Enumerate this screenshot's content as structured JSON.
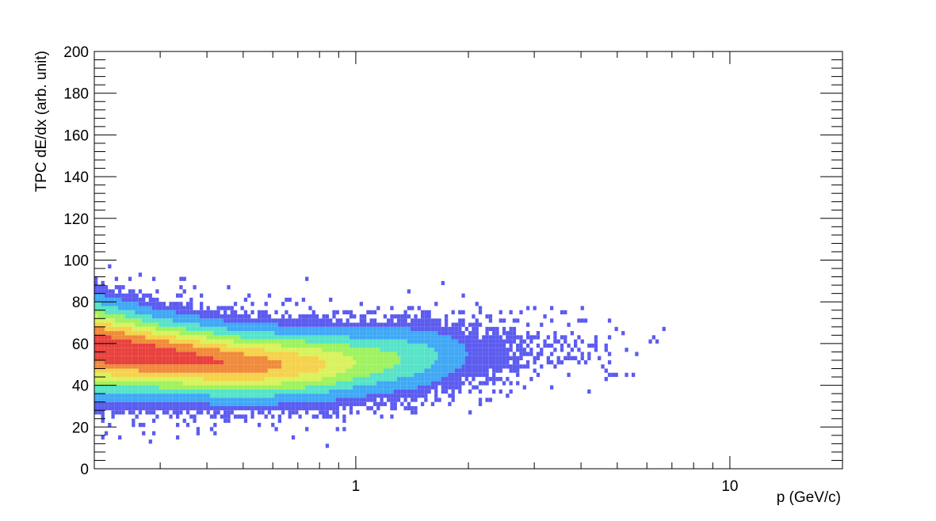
{
  "chart_data": {
    "type": "heatmap",
    "title": "",
    "xlabel": "p (GeV/c)",
    "ylabel": "TPC dE/dx (arb. unit)",
    "x_scale": "log",
    "xlim": [
      0.2,
      20
    ],
    "ylim": [
      0,
      200
    ],
    "grid": false,
    "legend": "none",
    "x_tick_labels": [
      {
        "value": 1,
        "label": "1"
      },
      {
        "value": 10,
        "label": "10"
      }
    ],
    "y_tick_labels": [
      {
        "value": 0,
        "label": "0"
      },
      {
        "value": 20,
        "label": "20"
      },
      {
        "value": 40,
        "label": "40"
      },
      {
        "value": 60,
        "label": "60"
      },
      {
        "value": 80,
        "label": "80"
      },
      {
        "value": 100,
        "label": "100"
      },
      {
        "value": 120,
        "label": "120"
      },
      {
        "value": 140,
        "label": "140"
      },
      {
        "value": 160,
        "label": "160"
      },
      {
        "value": 180,
        "label": "180"
      },
      {
        "value": 200,
        "label": "200"
      }
    ],
    "colormap": [
      "#ffffff",
      "#5b5bf0",
      "#3fa8f5",
      "#56e3c8",
      "#9ef25f",
      "#d9f25c",
      "#f5d24a",
      "#f08a3a",
      "#e8403c"
    ],
    "band_profile": [
      {
        "p": 0.2,
        "center_dEdx": 58,
        "width_dEdx": 13,
        "peak_counts": 1.0
      },
      {
        "p": 0.3,
        "center_dEdx": 54,
        "width_dEdx": 11,
        "peak_counts": 0.95
      },
      {
        "p": 0.5,
        "center_dEdx": 50,
        "width_dEdx": 10,
        "peak_counts": 0.85
      },
      {
        "p": 0.8,
        "center_dEdx": 50,
        "width_dEdx": 10,
        "peak_counts": 0.65
      },
      {
        "p": 1.0,
        "center_dEdx": 51,
        "width_dEdx": 10,
        "peak_counts": 0.5
      },
      {
        "p": 1.5,
        "center_dEdx": 53,
        "width_dEdx": 10,
        "peak_counts": 0.32
      },
      {
        "p": 2.0,
        "center_dEdx": 55,
        "width_dEdx": 9,
        "peak_counts": 0.12
      },
      {
        "p": 3.0,
        "center_dEdx": 58,
        "width_dEdx": 9,
        "peak_counts": 0.05
      },
      {
        "p": 5.0,
        "center_dEdx": 60,
        "width_dEdx": 9,
        "peak_counts": 0.01
      }
    ]
  }
}
